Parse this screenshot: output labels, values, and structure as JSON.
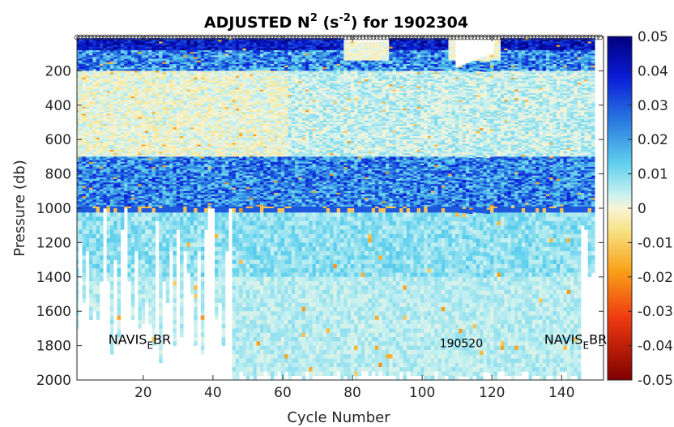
{
  "chart_data": {
    "type": "heatmap",
    "title_prefix": "ADJUSTED N",
    "title_sup": "2",
    "title_unit_open": " (s",
    "title_unit_sup": "-2",
    "title_unit_close": ") for 1902304",
    "xlabel": "Cycle Number",
    "ylabel": "Pressure (db)",
    "xlim": [
      1,
      152
    ],
    "ylim": [
      0,
      2000
    ],
    "y_reversed": true,
    "x_ticks": [
      20,
      40,
      60,
      80,
      100,
      120,
      140
    ],
    "y_ticks": [
      200,
      400,
      600,
      800,
      1000,
      1200,
      1400,
      1600,
      1800,
      2000
    ],
    "colorbar": {
      "min": -0.05,
      "max": 0.05,
      "colormap": "jet-like diverging (dark red to white-yellow to dark blue)",
      "ticks": [
        "0.05",
        "0.04",
        "0.03",
        "0.02",
        "0.01",
        "0",
        "-0.01",
        "-0.02",
        "-0.03",
        "-0.04",
        "-0.05"
      ]
    },
    "surface_markers": "open circles at every cycle along the top (near-surface sample)",
    "annotations": [
      {
        "text_main": "NAVIS",
        "text_sub": "E",
        "text_tail": "BR",
        "cycle": 10,
        "pressure": 1790
      },
      {
        "text_main": "190520",
        "text_sub": "",
        "text_tail": "",
        "cycle": 105,
        "pressure": 1810
      },
      {
        "text_main": "NAVIS",
        "text_sub": "E",
        "text_tail": "BR",
        "cycle": 135,
        "pressure": 1790
      }
    ]
  }
}
